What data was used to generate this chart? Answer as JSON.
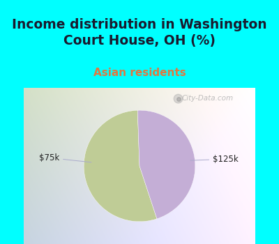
{
  "title": "Income distribution in Washington\nCourt House, OH (%)",
  "subtitle": "Asian residents",
  "title_color": "#1a1a2e",
  "subtitle_color": "#e07840",
  "title_fontsize": 13.5,
  "subtitle_fontsize": 11,
  "bg_cyan": "#00ffff",
  "chart_bg_left": "#c8eac8",
  "chart_bg_right": "#f0f0f8",
  "slices": [
    0.545,
    0.455
  ],
  "slice_colors": [
    "#bfcc96",
    "#c4aed6"
  ],
  "labels": [
    "$75k",
    "$125k"
  ],
  "watermark": "City-Data.com",
  "start_angle": 92
}
